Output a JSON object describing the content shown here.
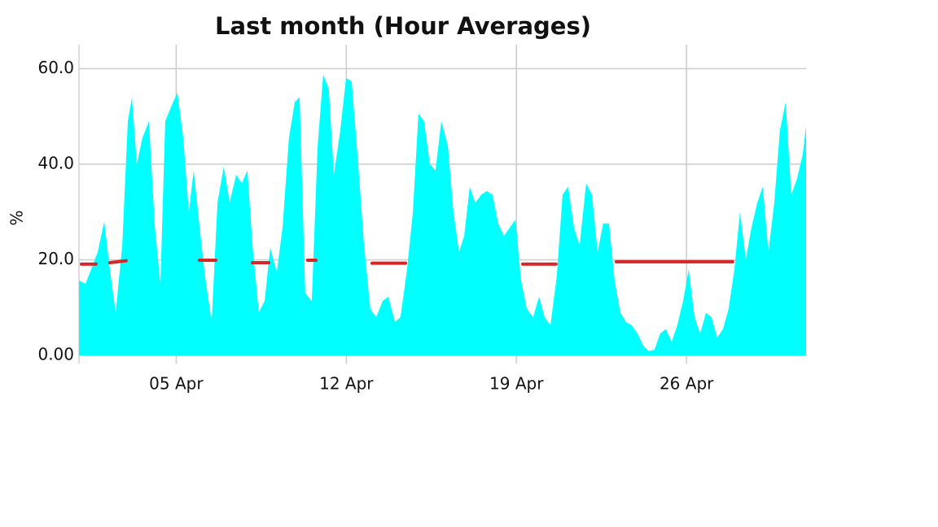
{
  "chart_data": {
    "type": "area",
    "title": "Last month (Hour Averages)",
    "y_label": "%",
    "xlim": [
      1,
      30.92
    ],
    "xticks": [
      {
        "value": 5,
        "label": "05 Apr"
      },
      {
        "value": 12,
        "label": "12 Apr"
      },
      {
        "value": 19,
        "label": "19 Apr"
      },
      {
        "value": 26,
        "label": "26 Apr"
      }
    ],
    "ylim": [
      -1.7,
      65
    ],
    "yticks": [
      {
        "value": 0,
        "label": "0.00"
      },
      {
        "value": 20,
        "label": "20.0"
      },
      {
        "value": 40,
        "label": "40.0"
      },
      {
        "value": 60,
        "label": "60.0"
      }
    ],
    "grid": true,
    "series": [
      {
        "type": "area",
        "color": "#00ffff",
        "x": [
          1.0,
          1.27,
          1.5,
          1.77,
          2.04,
          2.27,
          2.51,
          2.78,
          3.01,
          3.18,
          3.38,
          3.61,
          3.88,
          4.12,
          4.35,
          4.55,
          4.79,
          5.05,
          5.29,
          5.52,
          5.72,
          5.96,
          6.19,
          6.46,
          6.7,
          6.96,
          7.2,
          7.47,
          7.7,
          7.93,
          8.14,
          8.4,
          8.64,
          8.87,
          9.14,
          9.38,
          9.64,
          9.88,
          10.08,
          10.31,
          10.58,
          10.82,
          11.05,
          11.28,
          11.49,
          11.75,
          11.99,
          12.22,
          12.49,
          12.73,
          12.99,
          13.23,
          13.5,
          13.73,
          14.0,
          14.23,
          14.5,
          14.74,
          14.97,
          15.2,
          15.44,
          15.67,
          15.91,
          16.18,
          16.41,
          16.64,
          16.85,
          17.08,
          17.31,
          17.55,
          17.78,
          18.02,
          18.25,
          18.49,
          18.72,
          18.96,
          19.19,
          19.43,
          19.69,
          19.93,
          20.16,
          20.4,
          20.66,
          20.9,
          21.13,
          21.37,
          21.6,
          21.87,
          22.11,
          22.34,
          22.57,
          22.81,
          23.04,
          23.28,
          23.51,
          23.75,
          23.98,
          24.22,
          24.45,
          24.68,
          24.92,
          25.15,
          25.39,
          25.62,
          25.86,
          26.09,
          26.33,
          26.56,
          26.8,
          27.03,
          27.26,
          27.5,
          27.73,
          27.97,
          28.2,
          28.44,
          28.67,
          28.91,
          29.14,
          29.37,
          29.61,
          29.84,
          30.08,
          30.31,
          30.55,
          30.78,
          30.92
        ],
        "values": [
          15.7,
          15,
          18,
          21.6,
          28,
          18,
          9,
          23,
          49,
          54,
          40,
          45.5,
          49,
          27,
          15,
          49,
          52,
          55,
          45.5,
          30,
          38.7,
          27,
          16.5,
          7,
          32,
          39.5,
          32,
          37.8,
          36,
          38.7,
          23,
          9,
          11.4,
          22.5,
          17.4,
          27,
          45.5,
          53,
          54,
          13,
          11.4,
          43.8,
          58.8,
          55.7,
          37.8,
          47,
          58,
          57.4,
          40,
          23,
          9.7,
          8,
          11.4,
          12.3,
          7,
          8,
          18,
          30,
          50.6,
          49,
          40,
          38.7,
          49,
          43.8,
          30,
          21.6,
          25,
          35.3,
          31.9,
          33.6,
          34.4,
          33.6,
          27.6,
          25,
          26.7,
          28.4,
          15.7,
          9.7,
          8,
          12.3,
          8,
          6.3,
          16.5,
          33.6,
          35.3,
          26.7,
          23,
          36,
          33.6,
          21.6,
          27.6,
          27.6,
          15.7,
          8.9,
          7,
          6.3,
          4.6,
          2,
          0.9,
          1.2,
          4.6,
          5.5,
          2.9,
          6.3,
          11.4,
          18,
          8,
          4.6,
          8.9,
          8,
          3.7,
          5.5,
          9.7,
          18,
          30,
          20,
          26.7,
          31.9,
          35.3,
          21.6,
          31.9,
          47,
          53,
          33.6,
          37,
          42,
          48
        ]
      },
      {
        "type": "line",
        "color": "#d62728",
        "x": [
          1.1,
          1.7,
          null,
          2.27,
          2.94,
          null,
          5.96,
          6.63,
          null,
          8.14,
          8.81,
          null,
          10.41,
          10.75,
          null,
          13.06,
          14.44,
          null,
          19.26,
          20.63,
          null,
          23.11,
          27.9
        ],
        "values": [
          19.1,
          19.1,
          null,
          19.4,
          19.8,
          null,
          19.9,
          19.9,
          null,
          19.4,
          19.4,
          null,
          19.9,
          19.9,
          null,
          19.3,
          19.3,
          null,
          19.1,
          19.1,
          null,
          19.6,
          19.6
        ]
      }
    ]
  }
}
